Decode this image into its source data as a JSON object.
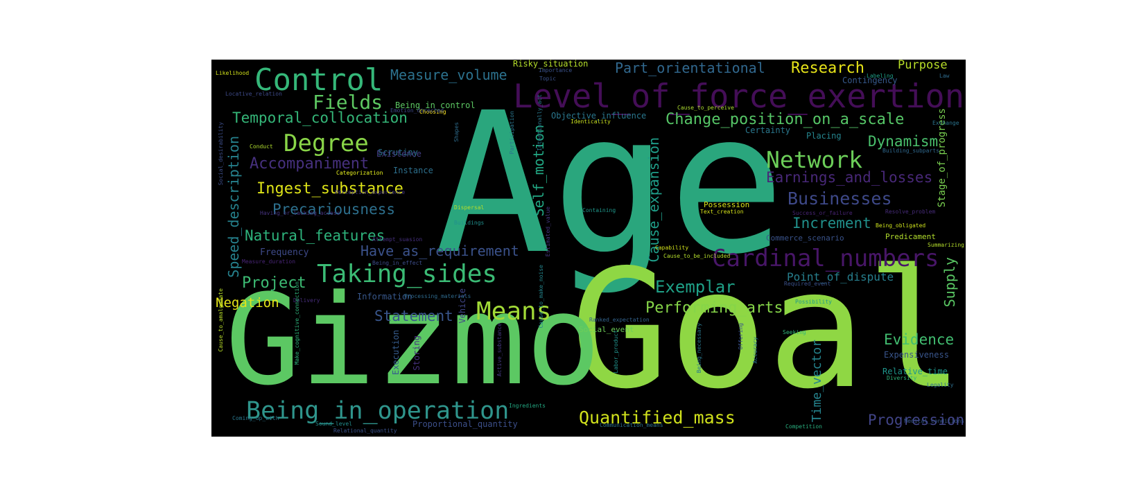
{
  "words": [
    {
      "text": "Age",
      "size": "huge",
      "color": "#2aa67d"
    },
    {
      "text": "Goal",
      "size": "huge",
      "color": "#8fd744"
    },
    {
      "text": "Gizmo",
      "size": "large",
      "color": "#5cc863"
    },
    {
      "text": "Level_of_force_exertion",
      "size": "medium",
      "color": "#440e57"
    },
    {
      "text": "Control",
      "size": "medium",
      "color": "#35b779"
    },
    {
      "text": "Taking_sides",
      "size": "medium",
      "color": "#3bbb75"
    },
    {
      "text": "Cardinal_numbers",
      "size": "medium",
      "color": "#481668"
    },
    {
      "text": "Being_in_operation",
      "size": "medium",
      "color": "#2f958c"
    },
    {
      "text": "Quantified_mass",
      "size": "medium",
      "color": "#d0e11c"
    },
    {
      "text": "Means",
      "size": "medium",
      "color": "#a2da37"
    },
    {
      "text": "Network",
      "size": "medium",
      "color": "#6cce59"
    },
    {
      "text": "Degree",
      "size": "medium",
      "color": "#89d548"
    },
    {
      "text": "Fields",
      "size": "small",
      "color": "#5ec962"
    },
    {
      "text": "Measure_volume",
      "size": "small",
      "color": "#2c728e"
    },
    {
      "text": "Research",
      "size": "small",
      "color": "#e7e419"
    },
    {
      "text": "Part_orientational",
      "size": "small",
      "color": "#31688e"
    },
    {
      "text": "Purpose",
      "size": "small",
      "color": "#b8de29"
    },
    {
      "text": "Temporal_collocation",
      "size": "small",
      "color": "#35b779"
    },
    {
      "text": "Change_position_on_a_scale",
      "size": "small",
      "color": "#56c667"
    },
    {
      "text": "Dynamism",
      "size": "small",
      "color": "#4ac16d"
    },
    {
      "text": "Earnings_and_losses",
      "size": "small",
      "color": "#482878"
    },
    {
      "text": "Accompaniment",
      "size": "small",
      "color": "#46307e"
    },
    {
      "text": "Ingest_substance",
      "size": "small",
      "color": "#dde318"
    },
    {
      "text": "Businesses",
      "size": "small",
      "color": "#3e4989"
    },
    {
      "text": "Precariousness",
      "size": "small",
      "color": "#2d708e"
    },
    {
      "text": "Natural_features",
      "size": "small",
      "color": "#2eb37c"
    },
    {
      "text": "Increment",
      "size": "small",
      "color": "#21918c"
    },
    {
      "text": "Have_as_requirement",
      "size": "small",
      "color": "#3b528b"
    },
    {
      "text": "Self_motion",
      "size": "small",
      "color": "#22a884"
    },
    {
      "text": "Cause_expansion",
      "size": "small",
      "color": "#1f9e89"
    },
    {
      "text": "Speed_description",
      "size": "small",
      "color": "#26828e"
    },
    {
      "text": "Project",
      "size": "small",
      "color": "#3dbc74"
    },
    {
      "text": "Exemplar",
      "size": "small",
      "color": "#1fa187"
    },
    {
      "text": "Point_of_dispute",
      "size": "small",
      "color": "#277f8e"
    },
    {
      "text": "Negation",
      "size": "small",
      "color": "#e5e419"
    },
    {
      "text": "Statement",
      "size": "small",
      "color": "#39568c"
    },
    {
      "text": "Performing_arts",
      "size": "small",
      "color": "#86d549"
    },
    {
      "text": "Evidence",
      "size": "small",
      "color": "#42be71"
    },
    {
      "text": "Supply",
      "size": "small",
      "color": "#5ac864"
    },
    {
      "text": "Progression",
      "size": "small",
      "color": "#414487"
    },
    {
      "text": "Time_vector",
      "size": "small",
      "color": "#25848e"
    },
    {
      "text": "Stage_of_progress",
      "size": "tiny",
      "color": "#7ad151"
    },
    {
      "text": "Frequency",
      "size": "tiny",
      "color": "#3e4a89"
    },
    {
      "text": "Risky_situation",
      "size": "xtiny",
      "color": "#b5de2b"
    },
    {
      "text": "Objective_influence",
      "size": "xtiny",
      "color": "#2a778e"
    },
    {
      "text": "Being_in_control",
      "size": "xtiny",
      "color": "#5dc863"
    },
    {
      "text": "Scrutiny",
      "size": "xtiny",
      "color": "#2c728e"
    },
    {
      "text": "Existence",
      "size": "xtiny",
      "color": "#433e85"
    },
    {
      "text": "Instance",
      "size": "xtiny",
      "color": "#2d708e"
    },
    {
      "text": "Certainty",
      "size": "xtiny",
      "color": "#2a788e"
    },
    {
      "text": "Placing",
      "size": "xtiny",
      "color": "#25858e"
    },
    {
      "text": "Contingency",
      "size": "xtiny",
      "color": "#375a8c"
    },
    {
      "text": "Possession",
      "size": "xtiny",
      "color": "#d8e219"
    },
    {
      "text": "Predicament",
      "size": "xtiny",
      "color": "#b2dd2d"
    },
    {
      "text": "Information",
      "size": "xtiny",
      "color": "#38588c"
    },
    {
      "text": "Vehicle",
      "size": "xtiny",
      "color": "#404688"
    },
    {
      "text": "Execution",
      "size": "xtiny",
      "color": "#365c8d"
    },
    {
      "text": "Storing",
      "size": "xtiny",
      "color": "#46327e"
    },
    {
      "text": "Expensiveness",
      "size": "xtiny",
      "color": "#39558c"
    },
    {
      "text": "Relative_time",
      "size": "xtiny",
      "color": "#1f968b"
    },
    {
      "text": "Social_event",
      "size": "xtiny",
      "color": "#6ece58"
    },
    {
      "text": "Proportional_quantity",
      "size": "xtiny",
      "color": "#3c4f8a"
    },
    {
      "text": "Commerce_scenario",
      "size": "xtiny",
      "color": "#3a538b"
    },
    {
      "text": "Likelihood",
      "size": "micro",
      "color": "#d2e21b"
    },
    {
      "text": "Importance",
      "size": "micro",
      "color": "#3b528b"
    },
    {
      "text": "Topic",
      "size": "micro",
      "color": "#3b528b"
    },
    {
      "text": "Labeling",
      "size": "micro",
      "color": "#1fa088"
    },
    {
      "text": "Law",
      "size": "micro",
      "color": "#2f6c8e"
    },
    {
      "text": "Locative_relation",
      "size": "micro",
      "color": "#3e4a89"
    },
    {
      "text": "Cause_to_perceive",
      "size": "micro",
      "color": "#addc30"
    },
    {
      "text": "Choosing",
      "size": "micro",
      "color": "#fde725"
    },
    {
      "text": "Participation",
      "size": "micro",
      "color": "#2a768e"
    },
    {
      "text": "Identicality",
      "size": "micro",
      "color": "#cae11f"
    },
    {
      "text": "Shapes",
      "size": "micro",
      "color": "#2e6d8e"
    },
    {
      "text": "Conduct",
      "size": "micro",
      "color": "#b0dd2f"
    },
    {
      "text": "Exchange",
      "size": "micro",
      "color": "#2b748e"
    },
    {
      "text": "Building_subparts",
      "size": "micro",
      "color": "#30698e"
    },
    {
      "text": "Social_desirability",
      "size": "micro",
      "color": "#3d4e8a"
    },
    {
      "text": "Categorization",
      "size": "micro",
      "color": "#ecf61f"
    },
    {
      "text": "Perception_experience",
      "size": "micro",
      "color": "#453781"
    },
    {
      "text": "Having_or_lacking_access",
      "size": "micro",
      "color": "#46337f"
    },
    {
      "text": "Containing",
      "size": "micro",
      "color": "#1f978b"
    },
    {
      "text": "Text_creation",
      "size": "micro",
      "color": "#d5e21a"
    },
    {
      "text": "Success_or_failure",
      "size": "micro",
      "color": "#482475"
    },
    {
      "text": "Resolve_problem",
      "size": "micro",
      "color": "#472c7a"
    },
    {
      "text": "Dispersal",
      "size": "micro",
      "color": "#b8de29"
    },
    {
      "text": "Buildings",
      "size": "micro",
      "color": "#21908d"
    },
    {
      "text": "Being_obligated",
      "size": "micro",
      "color": "#cde11d"
    },
    {
      "text": "Capability",
      "size": "micro",
      "color": "#d2e21b"
    },
    {
      "text": "Cause_to_be_included",
      "size": "micro",
      "color": "#b5de2b"
    },
    {
      "text": "Measure_duration",
      "size": "micro",
      "color": "#482576"
    },
    {
      "text": "Being_in_effect",
      "size": "micro",
      "color": "#3d4d8a"
    },
    {
      "text": "Required_event",
      "size": "micro",
      "color": "#3b518b"
    },
    {
      "text": "Delivery",
      "size": "micro",
      "color": "#472d7b"
    },
    {
      "text": "Processing_materials",
      "size": "micro",
      "color": "#2f6b8e"
    },
    {
      "text": "Possibility",
      "size": "micro",
      "color": "#1f9a8a"
    },
    {
      "text": "Ranked_expectation",
      "size": "micro",
      "color": "#33638d"
    },
    {
      "text": "Active_substance",
      "size": "micro",
      "color": "#453882"
    },
    {
      "text": "Seeking",
      "size": "micro",
      "color": "#32b67a"
    },
    {
      "text": "Summarizing",
      "size": "micro",
      "color": "#b5de2b"
    },
    {
      "text": "Labor_product",
      "size": "micro",
      "color": "#21918c"
    },
    {
      "text": "Being_necessary",
      "size": "micro",
      "color": "#2a788e"
    },
    {
      "text": "Offering",
      "size": "micro",
      "color": "#3a548c"
    },
    {
      "text": "Accuracy",
      "size": "micro",
      "color": "#2b758e"
    },
    {
      "text": "Diversity",
      "size": "micro",
      "color": "#30b47b"
    },
    {
      "text": "Legality",
      "size": "micro",
      "color": "#2e6f8e"
    },
    {
      "text": "Ingredients",
      "size": "micro",
      "color": "#23a983"
    },
    {
      "text": "Medical_conditions",
      "size": "micro",
      "color": "#38588c"
    },
    {
      "text": "Competition",
      "size": "micro",
      "color": "#29af7f"
    },
    {
      "text": "Coming_up_with",
      "size": "micro",
      "color": "#2a788e"
    },
    {
      "text": "Cause_to_amalgamate",
      "size": "micro",
      "color": "#b8de29"
    },
    {
      "text": "Make_cognitive_connection",
      "size": "micro",
      "color": "#2fb47c"
    },
    {
      "text": "Cause_to_make_noise",
      "size": "micro",
      "color": "#24868e"
    },
    {
      "text": "Emotion_directed",
      "size": "micro",
      "color": "#3e4989"
    },
    {
      "text": "Relational_quantity",
      "size": "micro",
      "color": "#3b528b"
    },
    {
      "text": "Intentionally_act",
      "size": "micro",
      "color": "#2a788e"
    },
    {
      "text": "Estimated_value",
      "size": "micro",
      "color": "#453882"
    },
    {
      "text": "Communication_means",
      "size": "micro",
      "color": "#2d718e"
    },
    {
      "text": "Attempt_suasion",
      "size": "micro",
      "color": "#46307e"
    },
    {
      "text": "Sound_level",
      "size": "micro",
      "color": "#228d8d"
    }
  ]
}
